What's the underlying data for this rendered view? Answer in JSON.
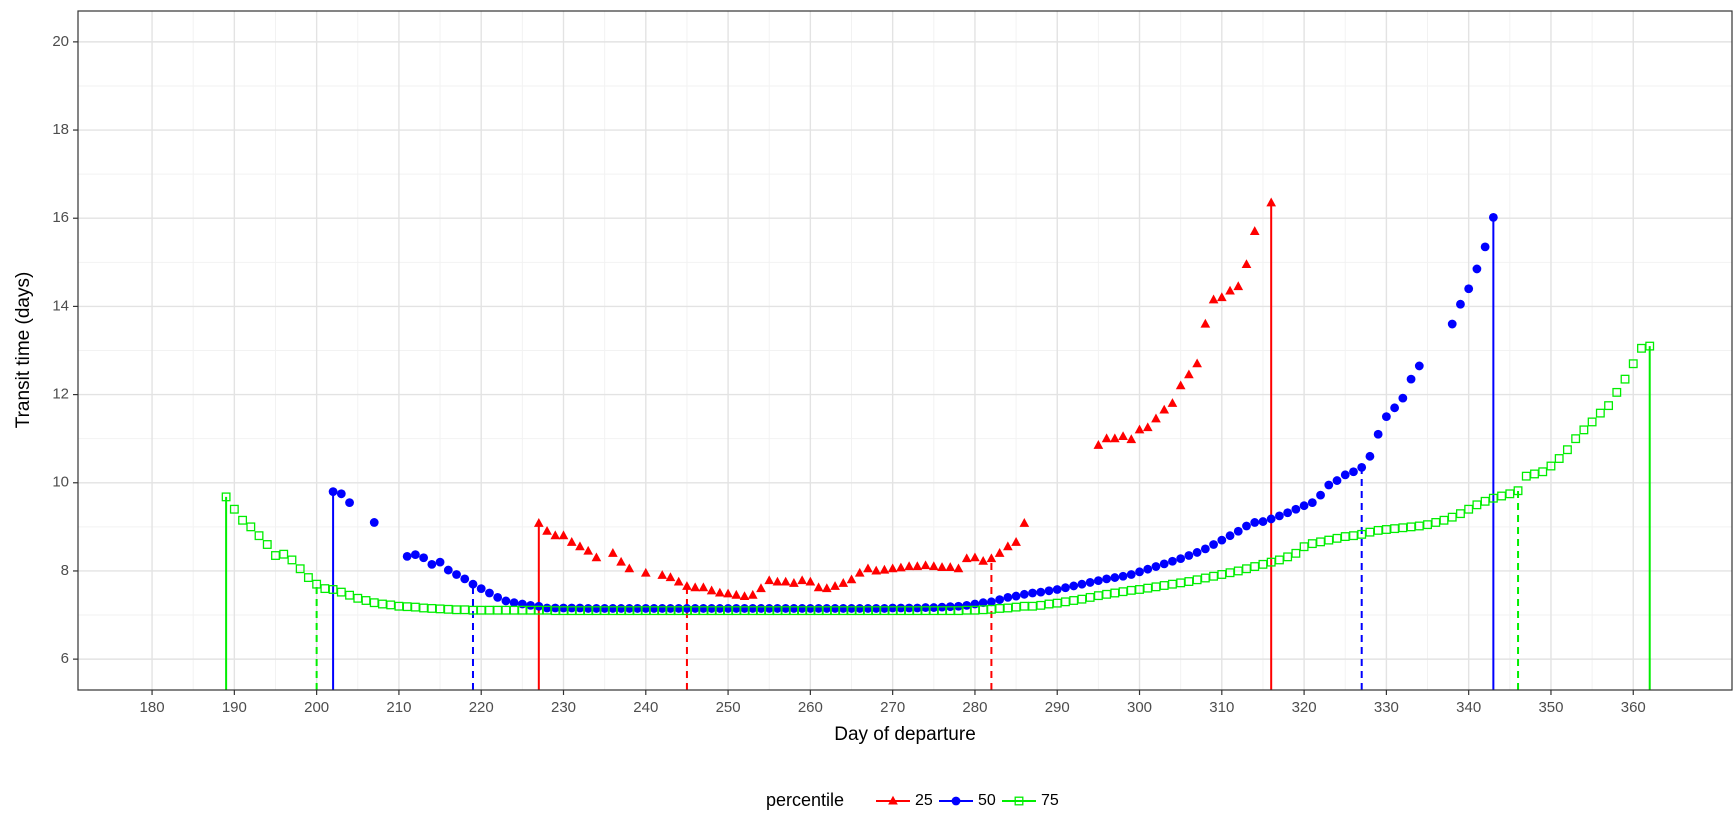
{
  "chart_data": {
    "type": "scatter",
    "xlabel": "Day of departure",
    "ylabel": "Transit time (days)",
    "legend_title": "percentile",
    "legend": "bottom",
    "grid": true,
    "xlim": [
      171,
      372
    ],
    "ylim": [
      5.3,
      20.7
    ],
    "xticks": [
      180,
      190,
      200,
      210,
      220,
      230,
      240,
      250,
      260,
      270,
      280,
      290,
      300,
      310,
      320,
      330,
      340,
      350,
      360
    ],
    "yticks": [
      6,
      8,
      10,
      12,
      14,
      16,
      18,
      20
    ],
    "series": [
      {
        "name": "25",
        "color": "#ff0000",
        "shape": "triangle",
        "solid_lines": [
          227,
          316
        ],
        "dashed_lines": [
          245,
          282
        ],
        "x": [
          227,
          228,
          229,
          230,
          231,
          232,
          233,
          234,
          236,
          237,
          238,
          240,
          242,
          243,
          244,
          245,
          246,
          247,
          248,
          249,
          250,
          251,
          252,
          253,
          254,
          255,
          256,
          257,
          258,
          259,
          260,
          261,
          262,
          263,
          264,
          265,
          266,
          267,
          268,
          269,
          270,
          271,
          272,
          273,
          274,
          275,
          276,
          277,
          278,
          279,
          280,
          281,
          282,
          283,
          284,
          285,
          286,
          295,
          296,
          297,
          298,
          299,
          300,
          301,
          302,
          303,
          304,
          305,
          306,
          307,
          308,
          309,
          310,
          311,
          312,
          313,
          314,
          316
        ],
        "values": [
          9.08,
          8.9,
          8.8,
          8.8,
          8.65,
          8.55,
          8.45,
          8.3,
          8.4,
          8.2,
          8.05,
          7.95,
          7.9,
          7.85,
          7.75,
          7.65,
          7.62,
          7.62,
          7.55,
          7.5,
          7.48,
          7.45,
          7.42,
          7.45,
          7.6,
          7.78,
          7.75,
          7.75,
          7.72,
          7.78,
          7.75,
          7.62,
          7.6,
          7.65,
          7.72,
          7.8,
          7.95,
          8.05,
          8.0,
          8.02,
          8.05,
          8.07,
          8.1,
          8.1,
          8.12,
          8.1,
          8.08,
          8.08,
          8.05,
          8.28,
          8.3,
          8.22,
          8.28,
          8.4,
          8.55,
          8.65,
          9.08,
          10.85,
          11.0,
          11.0,
          11.05,
          10.98,
          11.2,
          11.25,
          11.45,
          11.65,
          11.8,
          12.2,
          12.45,
          12.7,
          13.6,
          14.15,
          14.2,
          14.35,
          14.45,
          14.95,
          15.7,
          16.35
        ]
      },
      {
        "name": "50",
        "color": "#0000ff",
        "shape": "circle",
        "solid_lines": [
          202,
          343
        ],
        "dashed_lines": [
          219,
          327
        ],
        "x": [
          202,
          203,
          204,
          207,
          211,
          212,
          213,
          214,
          215,
          216,
          217,
          218,
          219,
          220,
          221,
          222,
          223,
          224,
          225,
          226,
          227,
          228,
          229,
          230,
          231,
          232,
          233,
          234,
          235,
          236,
          237,
          238,
          239,
          240,
          241,
          242,
          243,
          244,
          245,
          246,
          247,
          248,
          249,
          250,
          251,
          252,
          253,
          254,
          255,
          256,
          257,
          258,
          259,
          260,
          261,
          262,
          263,
          264,
          265,
          266,
          267,
          268,
          269,
          270,
          271,
          272,
          273,
          274,
          275,
          276,
          277,
          278,
          279,
          280,
          281,
          282,
          283,
          284,
          285,
          286,
          287,
          288,
          289,
          290,
          291,
          292,
          293,
          294,
          295,
          296,
          297,
          298,
          299,
          300,
          301,
          302,
          303,
          304,
          305,
          306,
          307,
          308,
          309,
          310,
          311,
          312,
          313,
          314,
          315,
          316,
          317,
          318,
          319,
          320,
          321,
          322,
          323,
          324,
          325,
          326,
          327,
          328,
          329,
          330,
          331,
          332,
          333,
          334,
          338,
          339,
          340,
          341,
          342,
          343
        ],
        "values": [
          9.8,
          9.75,
          9.55,
          9.1,
          8.33,
          8.37,
          8.3,
          8.15,
          8.2,
          8.02,
          7.92,
          7.82,
          7.7,
          7.6,
          7.5,
          7.4,
          7.32,
          7.28,
          7.25,
          7.22,
          7.2,
          7.16,
          7.16,
          7.16,
          7.16,
          7.16,
          7.15,
          7.15,
          7.15,
          7.15,
          7.15,
          7.15,
          7.15,
          7.15,
          7.15,
          7.15,
          7.15,
          7.15,
          7.15,
          7.15,
          7.15,
          7.15,
          7.15,
          7.15,
          7.15,
          7.15,
          7.15,
          7.15,
          7.15,
          7.15,
          7.15,
          7.15,
          7.15,
          7.15,
          7.15,
          7.15,
          7.15,
          7.15,
          7.15,
          7.15,
          7.15,
          7.15,
          7.15,
          7.16,
          7.16,
          7.16,
          7.16,
          7.17,
          7.17,
          7.18,
          7.19,
          7.2,
          7.22,
          7.25,
          7.28,
          7.3,
          7.35,
          7.4,
          7.43,
          7.47,
          7.5,
          7.52,
          7.55,
          7.58,
          7.62,
          7.66,
          7.7,
          7.74,
          7.78,
          7.82,
          7.85,
          7.88,
          7.92,
          7.98,
          8.04,
          8.1,
          8.16,
          8.22,
          8.28,
          8.35,
          8.42,
          8.5,
          8.6,
          8.7,
          8.8,
          8.9,
          9.02,
          9.1,
          9.12,
          9.18,
          9.25,
          9.32,
          9.4,
          9.48,
          9.55,
          9.72,
          9.95,
          10.05,
          10.18,
          10.25,
          10.35,
          10.6,
          11.1,
          11.5,
          11.7,
          11.92,
          12.35,
          12.65,
          13.6,
          14.05,
          14.4,
          14.85,
          15.35,
          16.02
        ]
      },
      {
        "name": "75",
        "color": "#00ee00",
        "shape": "square",
        "solid_lines": [
          189,
          362
        ],
        "dashed_lines": [
          200,
          346
        ],
        "x": [
          189,
          190,
          191,
          192,
          193,
          194,
          195,
          196,
          197,
          198,
          199,
          200,
          201,
          202,
          203,
          204,
          205,
          206,
          207,
          208,
          209,
          210,
          211,
          212,
          213,
          214,
          215,
          216,
          217,
          218,
          219,
          220,
          221,
          222,
          223,
          224,
          225,
          226,
          227,
          228,
          229,
          230,
          231,
          232,
          233,
          234,
          235,
          236,
          237,
          238,
          239,
          240,
          241,
          242,
          243,
          244,
          245,
          246,
          247,
          248,
          249,
          250,
          251,
          252,
          253,
          254,
          255,
          256,
          257,
          258,
          259,
          260,
          261,
          262,
          263,
          264,
          265,
          266,
          267,
          268,
          269,
          270,
          271,
          272,
          273,
          274,
          275,
          276,
          277,
          278,
          279,
          280,
          281,
          282,
          283,
          284,
          285,
          286,
          287,
          288,
          289,
          290,
          291,
          292,
          293,
          294,
          295,
          296,
          297,
          298,
          299,
          300,
          301,
          302,
          303,
          304,
          305,
          306,
          307,
          308,
          309,
          310,
          311,
          312,
          313,
          314,
          315,
          316,
          317,
          318,
          319,
          320,
          321,
          322,
          323,
          324,
          325,
          326,
          327,
          328,
          329,
          330,
          331,
          332,
          333,
          334,
          335,
          336,
          337,
          338,
          339,
          340,
          341,
          342,
          343,
          344,
          345,
          346,
          347,
          348,
          349,
          350,
          351,
          352,
          353,
          354,
          355,
          356,
          357,
          358,
          359,
          360,
          361,
          362
        ],
        "values": [
          9.68,
          9.4,
          9.15,
          9.0,
          8.8,
          8.6,
          8.35,
          8.38,
          8.25,
          8.05,
          7.85,
          7.7,
          7.6,
          7.58,
          7.52,
          7.45,
          7.38,
          7.33,
          7.28,
          7.25,
          7.23,
          7.2,
          7.19,
          7.18,
          7.16,
          7.15,
          7.14,
          7.13,
          7.12,
          7.12,
          7.11,
          7.11,
          7.11,
          7.11,
          7.11,
          7.11,
          7.11,
          7.11,
          7.11,
          7.11,
          7.1,
          7.1,
          7.1,
          7.1,
          7.1,
          7.1,
          7.1,
          7.1,
          7.1,
          7.1,
          7.1,
          7.1,
          7.1,
          7.1,
          7.1,
          7.1,
          7.1,
          7.1,
          7.1,
          7.1,
          7.1,
          7.1,
          7.1,
          7.1,
          7.1,
          7.1,
          7.1,
          7.1,
          7.1,
          7.1,
          7.1,
          7.1,
          7.1,
          7.1,
          7.1,
          7.1,
          7.1,
          7.1,
          7.1,
          7.1,
          7.1,
          7.1,
          7.1,
          7.1,
          7.1,
          7.1,
          7.1,
          7.1,
          7.1,
          7.1,
          7.11,
          7.11,
          7.12,
          7.13,
          7.15,
          7.16,
          7.18,
          7.2,
          7.2,
          7.22,
          7.25,
          7.27,
          7.3,
          7.33,
          7.36,
          7.4,
          7.44,
          7.47,
          7.5,
          7.53,
          7.56,
          7.58,
          7.61,
          7.64,
          7.67,
          7.7,
          7.73,
          7.76,
          7.8,
          7.84,
          7.88,
          7.92,
          7.96,
          8.0,
          8.05,
          8.1,
          8.15,
          8.2,
          8.25,
          8.32,
          8.4,
          8.55,
          8.62,
          8.66,
          8.7,
          8.74,
          8.78,
          8.8,
          8.83,
          8.88,
          8.92,
          8.94,
          8.96,
          8.98,
          9.0,
          9.02,
          9.05,
          9.1,
          9.15,
          9.22,
          9.3,
          9.4,
          9.5,
          9.58,
          9.65,
          9.7,
          9.75,
          9.82,
          10.15,
          10.2,
          10.25,
          10.38,
          10.55,
          10.75,
          11.0,
          11.2,
          11.38,
          11.58,
          11.75,
          12.05,
          12.35,
          12.7,
          13.05,
          13.1
        ]
      }
    ]
  }
}
